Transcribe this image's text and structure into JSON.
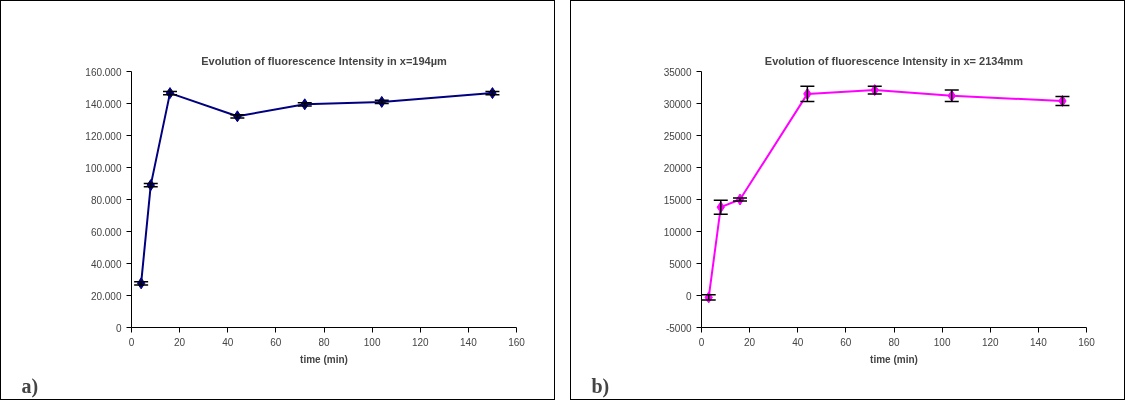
{
  "chart_data": [
    {
      "type": "line",
      "title": "Evolution of fluorescence Intensity in x=194µm",
      "xlabel": "time (min)",
      "x": [
        4,
        8,
        16,
        44,
        72,
        104,
        150
      ],
      "series": [
        {
          "color": "#000080",
          "values": [
            27600,
            89000,
            146500,
            132000,
            139500,
            141000,
            146500
          ],
          "errors": [
            1000,
            1000,
            1000,
            1000,
            1000,
            1000,
            1000
          ]
        }
      ],
      "xlim": [
        0,
        160
      ],
      "xticks": [
        0,
        20,
        40,
        60,
        80,
        100,
        120,
        140,
        160
      ],
      "ylim": [
        0,
        160000
      ],
      "yticks": [
        0,
        {
          "value": 20000,
          "label": "20.000"
        },
        {
          "value": 40000,
          "label": "40.000"
        },
        {
          "value": 60000,
          "label": "60.000"
        },
        {
          "value": 80000,
          "label": "80.000"
        },
        {
          "value": 100000,
          "label": "100.000"
        },
        {
          "value": 120000,
          "label": "120.000"
        },
        {
          "value": 140000,
          "label": "140.000"
        },
        {
          "value": 160000,
          "label": "160.000"
        }
      ],
      "marker": "diamond",
      "annotations": [
        "a)"
      ]
    },
    {
      "type": "line",
      "title": "Evolution of fluorescence Intensity in x= 2134mm",
      "xlabel": "time (min)",
      "x": [
        3,
        8,
        16,
        44,
        72,
        104,
        150
      ],
      "series": [
        {
          "color": "#ff00ff",
          "values": [
            -300,
            13800,
            15000,
            31500,
            32100,
            31200,
            30400
          ],
          "errors": [
            400,
            1100,
            250,
            1200,
            600,
            900,
            700
          ]
        }
      ],
      "xlim": [
        0,
        160
      ],
      "xticks": [
        0,
        20,
        40,
        60,
        80,
        100,
        120,
        140,
        160
      ],
      "ylim": [
        -5000,
        35000
      ],
      "yticks": [
        -5000,
        0,
        5000,
        10000,
        15000,
        20000,
        25000,
        30000,
        35000
      ],
      "marker": "diamond",
      "annotations": [
        "b)"
      ]
    }
  ]
}
